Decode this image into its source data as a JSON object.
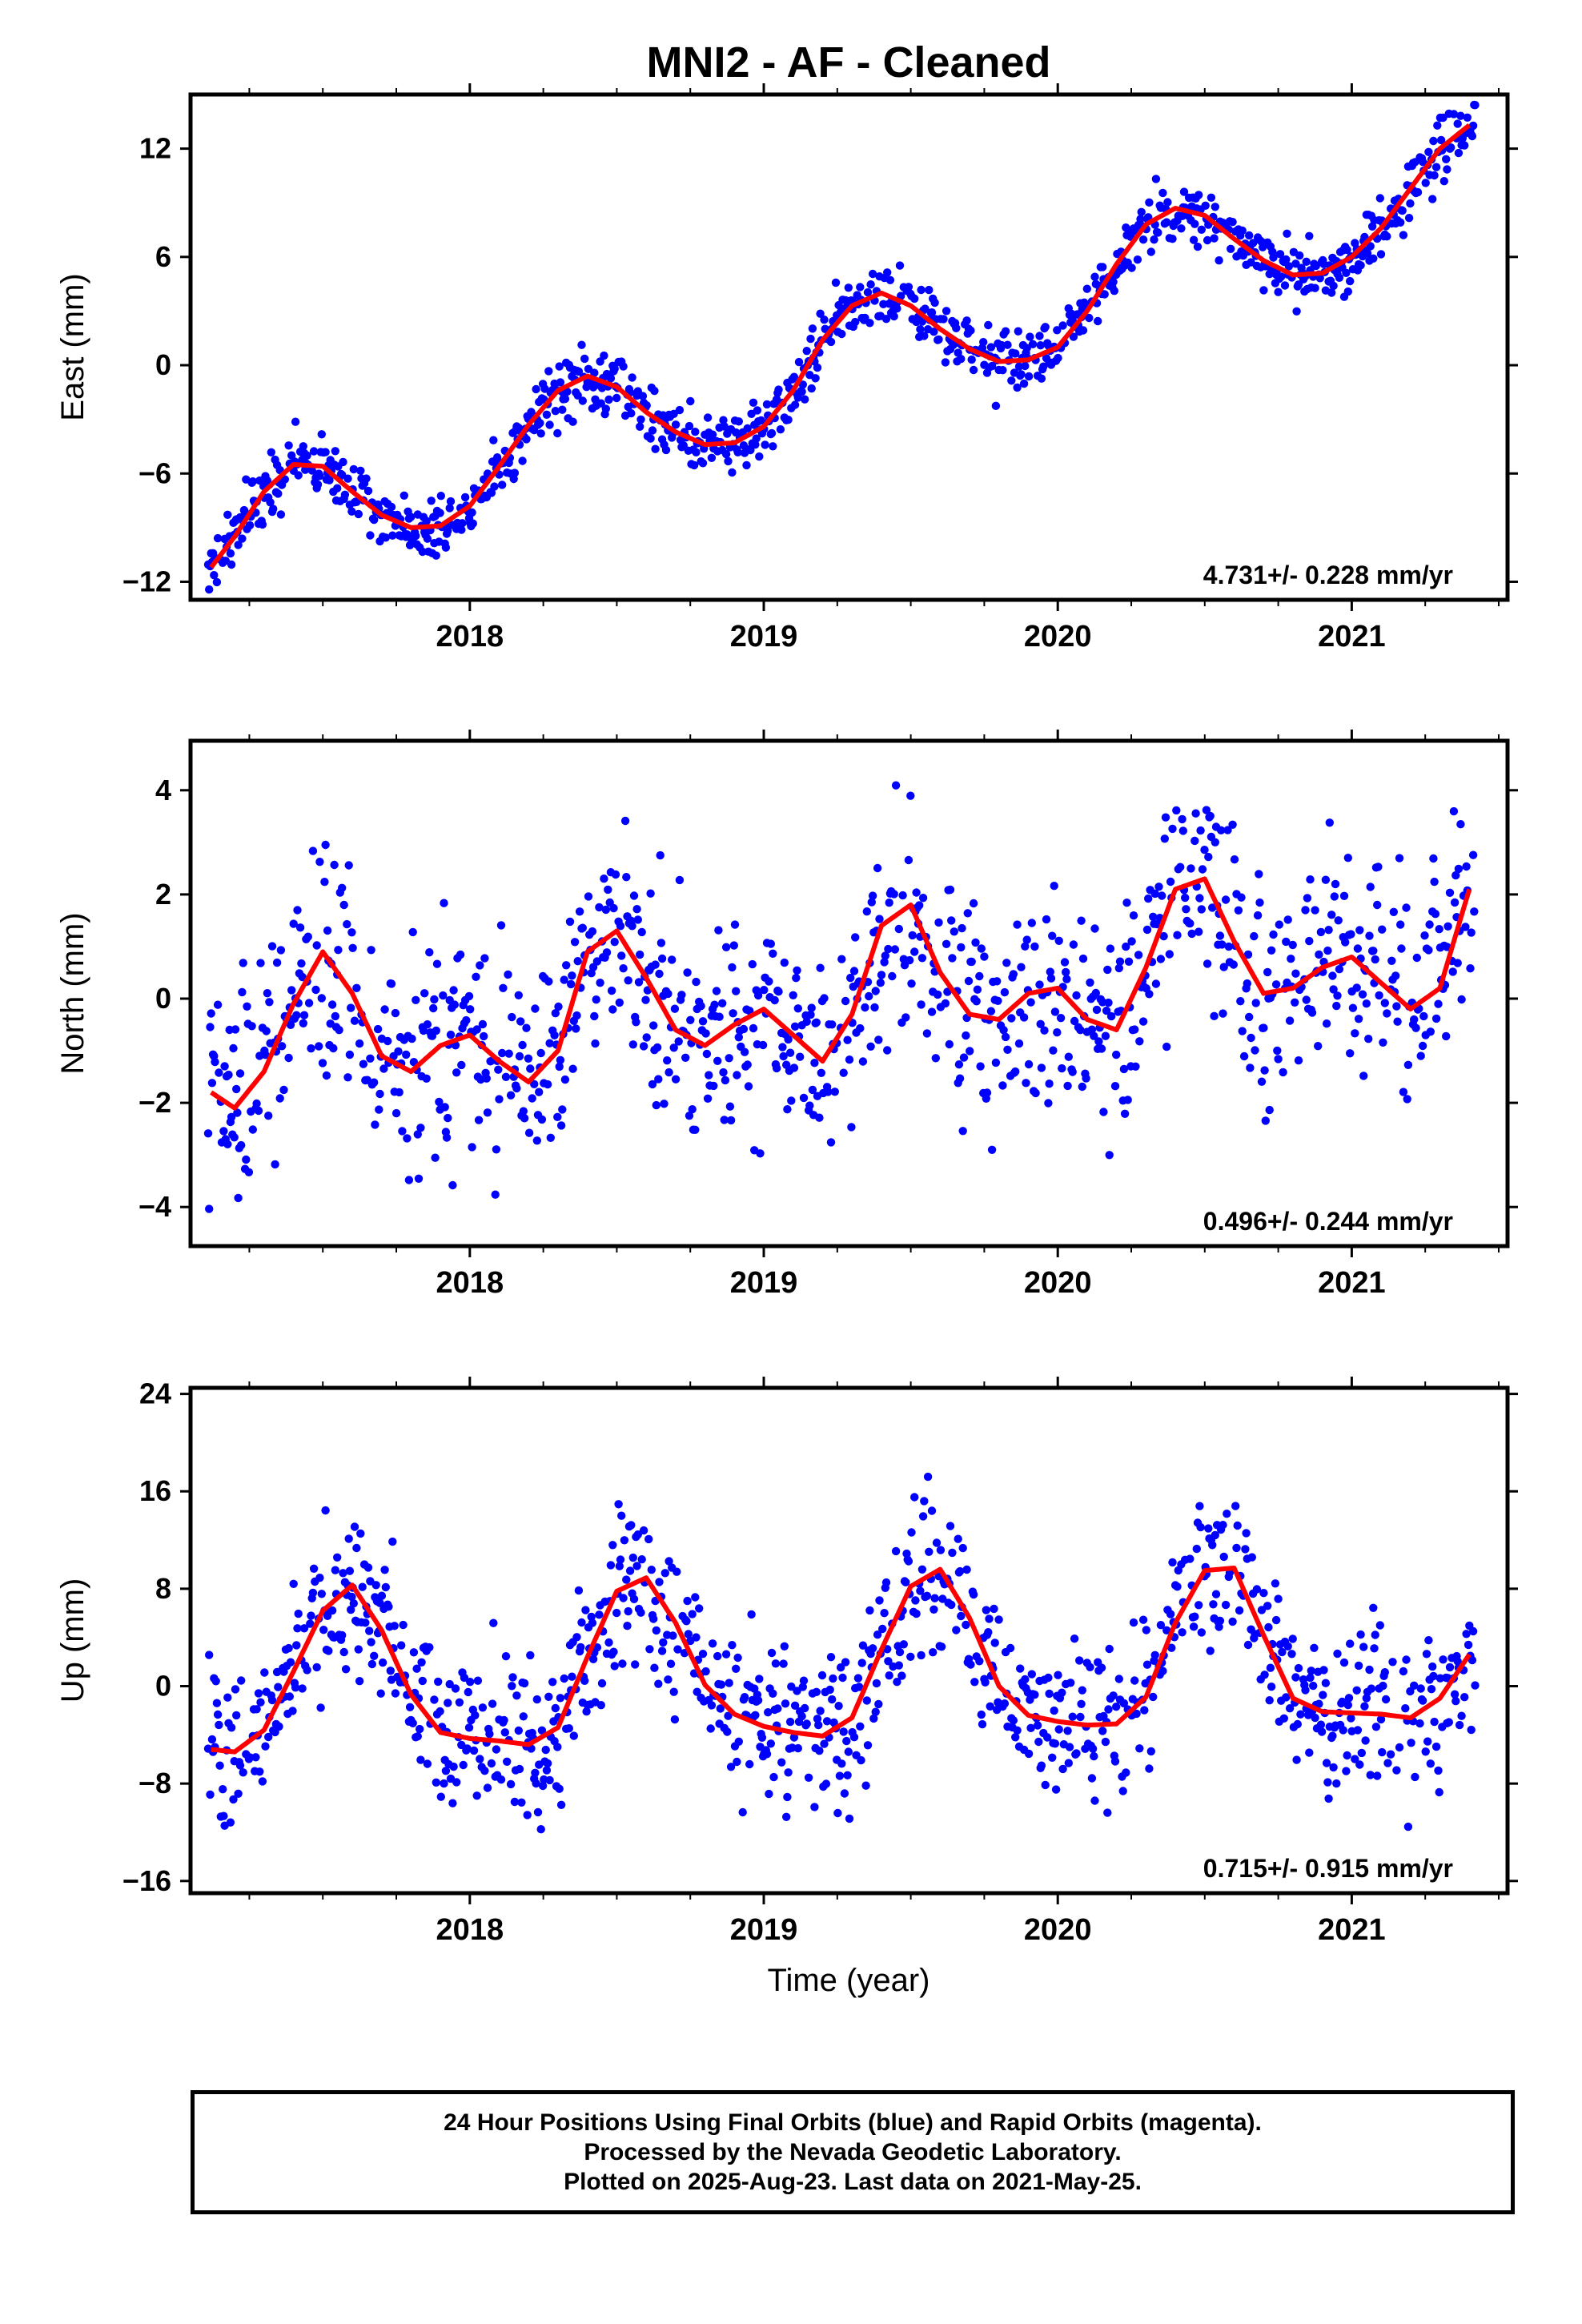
{
  "title": "MNI2  - AF - Cleaned",
  "x_axis_title": "Time (year)",
  "footer": {
    "line1": "24 Hour Positions Using Final Orbits (blue) and Rapid Orbits (magenta).",
    "line2": "Processed by the Nevada Geodetic Laboratory.",
    "line3": "Plotted on 2025-Aug-23. Last data on 2021-May-25."
  },
  "colors": {
    "points": "#0000ff",
    "fit": "#ff0000",
    "axis": "#000000"
  },
  "chart_data": [
    {
      "type": "scatter",
      "component": "east",
      "ylabel": "East (mm)",
      "ylim": [
        -13,
        15
      ],
      "xlim": [
        2017.05,
        2021.53
      ],
      "yticks": [
        -12,
        -6,
        0,
        6,
        12
      ],
      "xticks": [
        2018,
        2019,
        2020,
        2021
      ],
      "xtick_labels": [
        "2018",
        "2019",
        "2020",
        "2021"
      ],
      "rate": "4.731+/- 0.228 mm/yr",
      "series": [
        {
          "values": {
            "x": [
              2017.12,
              2017.2,
              2017.3,
              2017.4,
              2017.5,
              2017.6,
              2017.7,
              2017.8,
              2017.9,
              2018.0,
              2018.1,
              2018.2,
              2018.3,
              2018.4,
              2018.5,
              2018.6,
              2018.7,
              2018.8,
              2018.9,
              2019.0,
              2019.1,
              2019.2,
              2019.3,
              2019.4,
              2019.5,
              2019.6,
              2019.7,
              2019.8,
              2019.9,
              2020.0,
              2020.1,
              2020.2,
              2020.3,
              2020.4,
              2020.5,
              2020.6,
              2020.7,
              2020.8,
              2020.9,
              2021.0,
              2021.1,
              2021.2,
              2021.3,
              2021.4
            ],
            "y": [
              -11.2,
              -9.5,
              -7.0,
              -5.5,
              -5.6,
              -7.0,
              -8.3,
              -9.0,
              -8.9,
              -7.8,
              -5.6,
              -3.3,
              -1.4,
              -0.6,
              -1.2,
              -2.6,
              -3.7,
              -4.4,
              -4.3,
              -3.4,
              -1.4,
              1.4,
              3.3,
              4.0,
              3.3,
              2.0,
              0.9,
              0.2,
              0.3,
              1.0,
              3.0,
              5.6,
              7.8,
              8.7,
              8.3,
              7.0,
              5.8,
              5.0,
              5.1,
              6.0,
              7.6,
              9.8,
              12.0,
              13.3
            ]
          }
        },
        {
          "name": "fit",
          "values": {
            "x": [
              2017.12,
              2017.2,
              2017.3,
              2017.4,
              2017.5,
              2017.6,
              2017.7,
              2017.8,
              2017.9,
              2018.0,
              2018.1,
              2018.2,
              2018.3,
              2018.4,
              2018.5,
              2018.6,
              2018.7,
              2018.8,
              2018.9,
              2019.0,
              2019.1,
              2019.2,
              2019.3,
              2019.4,
              2019.5,
              2019.6,
              2019.7,
              2019.8,
              2019.9,
              2020.0,
              2020.1,
              2020.2,
              2020.3,
              2020.4,
              2020.5,
              2020.6,
              2020.7,
              2020.8,
              2020.9,
              2021.0,
              2021.1,
              2021.2,
              2021.3,
              2021.4
            ],
            "y": [
              -11.2,
              -9.5,
              -7.0,
              -5.5,
              -5.6,
              -7.0,
              -8.3,
              -9.0,
              -8.9,
              -7.8,
              -5.6,
              -3.3,
              -1.4,
              -0.6,
              -1.2,
              -2.6,
              -3.7,
              -4.4,
              -4.3,
              -3.4,
              -1.4,
              1.4,
              3.3,
              4.0,
              3.3,
              2.0,
              0.9,
              0.2,
              0.3,
              1.0,
              3.0,
              5.6,
              7.8,
              8.7,
              8.3,
              7.0,
              5.8,
              5.0,
              5.1,
              6.0,
              7.6,
              9.8,
              12.0,
              13.3
            ]
          }
        }
      ]
    },
    {
      "type": "scatter",
      "component": "north",
      "ylabel": "North (mm)",
      "ylim": [
        -4.75,
        4.95
      ],
      "xlim": [
        2017.05,
        2021.53
      ],
      "yticks": [
        -4,
        -2,
        0,
        2,
        4
      ],
      "xticks": [
        2018,
        2019,
        2020,
        2021
      ],
      "xtick_labels": [
        "2018",
        "2019",
        "2020",
        "2021"
      ],
      "rate": "0.496+/- 0.244 mm/yr",
      "series": [
        {
          "values": {
            "x": [
              2017.12,
              2017.2,
              2017.3,
              2017.4,
              2017.5,
              2017.6,
              2017.7,
              2017.8,
              2017.9,
              2018.0,
              2018.1,
              2018.2,
              2018.3,
              2018.4,
              2018.5,
              2018.6,
              2018.7,
              2018.8,
              2018.9,
              2019.0,
              2019.1,
              2019.2,
              2019.3,
              2019.4,
              2019.5,
              2019.6,
              2019.7,
              2019.8,
              2019.9,
              2020.0,
              2020.1,
              2020.2,
              2020.3,
              2020.4,
              2020.5,
              2020.6,
              2020.7,
              2020.8,
              2020.9,
              2021.0,
              2021.1,
              2021.2,
              2021.3,
              2021.4
            ],
            "y": [
              -1.8,
              -2.1,
              -1.4,
              -0.1,
              0.9,
              0.1,
              -1.1,
              -1.4,
              -0.9,
              -0.7,
              -1.2,
              -1.6,
              -1.0,
              0.9,
              1.3,
              0.4,
              -0.6,
              -0.9,
              -0.5,
              -0.2,
              -0.7,
              -1.2,
              -0.3,
              1.4,
              1.8,
              0.5,
              -0.3,
              -0.4,
              0.1,
              0.2,
              -0.4,
              -0.6,
              0.6,
              2.1,
              2.3,
              1.1,
              0.1,
              0.2,
              0.6,
              0.8,
              0.3,
              -0.2,
              0.2,
              2.1
            ]
          }
        },
        {
          "name": "fit",
          "values": {
            "x": [
              2017.12,
              2017.2,
              2017.3,
              2017.4,
              2017.5,
              2017.6,
              2017.7,
              2017.8,
              2017.9,
              2018.0,
              2018.1,
              2018.2,
              2018.3,
              2018.4,
              2018.5,
              2018.6,
              2018.7,
              2018.8,
              2018.9,
              2019.0,
              2019.1,
              2019.2,
              2019.3,
              2019.4,
              2019.5,
              2019.6,
              2019.7,
              2019.8,
              2019.9,
              2020.0,
              2020.1,
              2020.2,
              2020.3,
              2020.4,
              2020.5,
              2020.6,
              2020.7,
              2020.8,
              2020.9,
              2021.0,
              2021.1,
              2021.2,
              2021.3,
              2021.4
            ],
            "y": [
              -1.8,
              -2.1,
              -1.4,
              -0.1,
              0.9,
              0.1,
              -1.1,
              -1.4,
              -0.9,
              -0.7,
              -1.2,
              -1.6,
              -1.0,
              0.9,
              1.3,
              0.4,
              -0.6,
              -0.9,
              -0.5,
              -0.2,
              -0.7,
              -1.2,
              -0.3,
              1.4,
              1.8,
              0.5,
              -0.3,
              -0.4,
              0.1,
              0.2,
              -0.4,
              -0.6,
              0.6,
              2.1,
              2.3,
              1.1,
              0.1,
              0.2,
              0.6,
              0.8,
              0.3,
              -0.2,
              0.2,
              2.1
            ]
          }
        }
      ]
    },
    {
      "type": "scatter",
      "component": "up",
      "ylabel": "Up (mm)",
      "ylim": [
        -17,
        24.5
      ],
      "xlim": [
        2017.05,
        2021.53
      ],
      "yticks": [
        -16,
        -8,
        0,
        8,
        16,
        24
      ],
      "xticks": [
        2018,
        2019,
        2020,
        2021
      ],
      "xtick_labels": [
        "2018",
        "2019",
        "2020",
        "2021"
      ],
      "rate": "0.715+/- 0.915 mm/yr",
      "series": [
        {
          "values": {
            "x": [
              2017.12,
              2017.2,
              2017.3,
              2017.4,
              2017.5,
              2017.6,
              2017.7,
              2017.8,
              2017.9,
              2018.0,
              2018.1,
              2018.2,
              2018.3,
              2018.4,
              2018.5,
              2018.6,
              2018.7,
              2018.8,
              2018.9,
              2019.0,
              2019.1,
              2019.2,
              2019.3,
              2019.4,
              2019.5,
              2019.6,
              2019.7,
              2019.8,
              2019.9,
              2020.0,
              2020.1,
              2020.2,
              2020.3,
              2020.4,
              2020.5,
              2020.6,
              2020.7,
              2020.8,
              2020.9,
              2021.0,
              2021.1,
              2021.2,
              2021.3,
              2021.4
            ],
            "y": [
              -5.2,
              -5.4,
              -3.6,
              1.2,
              6.2,
              8.3,
              4.6,
              -0.7,
              -3.8,
              -4.3,
              -4.5,
              -4.8,
              -3.4,
              2.4,
              7.8,
              8.9,
              5.2,
              0.1,
              -2.3,
              -3.3,
              -3.8,
              -4.1,
              -2.6,
              3.0,
              8.2,
              9.6,
              5.6,
              0.0,
              -2.4,
              -2.9,
              -3.2,
              -3.1,
              -0.9,
              5.2,
              9.5,
              9.7,
              4.2,
              -1.0,
              -2.1,
              -2.2,
              -2.3,
              -2.6,
              -1.0,
              2.6
            ]
          }
        },
        {
          "name": "fit",
          "values": {
            "x": [
              2017.12,
              2017.2,
              2017.3,
              2017.4,
              2017.5,
              2017.6,
              2017.7,
              2017.8,
              2017.9,
              2018.0,
              2018.1,
              2018.2,
              2018.3,
              2018.4,
              2018.5,
              2018.6,
              2018.7,
              2018.8,
              2018.9,
              2019.0,
              2019.1,
              2019.2,
              2019.3,
              2019.4,
              2019.5,
              2019.6,
              2019.7,
              2019.8,
              2019.9,
              2020.0,
              2020.1,
              2020.2,
              2020.3,
              2020.4,
              2020.5,
              2020.6,
              2020.7,
              2020.8,
              2020.9,
              2021.0,
              2021.1,
              2021.2,
              2021.3,
              2021.4
            ],
            "y": [
              -5.2,
              -5.4,
              -3.6,
              1.2,
              6.2,
              8.3,
              4.6,
              -0.7,
              -3.8,
              -4.3,
              -4.5,
              -4.8,
              -3.4,
              2.4,
              7.8,
              8.9,
              5.2,
              0.1,
              -2.3,
              -3.3,
              -3.8,
              -4.1,
              -2.6,
              3.0,
              8.2,
              9.6,
              5.6,
              0.0,
              -2.4,
              -2.9,
              -3.2,
              -3.1,
              -0.9,
              5.2,
              9.5,
              9.7,
              4.2,
              -1.0,
              -2.1,
              -2.2,
              -2.3,
              -2.6,
              -1.0,
              2.6
            ]
          }
        }
      ]
    }
  ]
}
